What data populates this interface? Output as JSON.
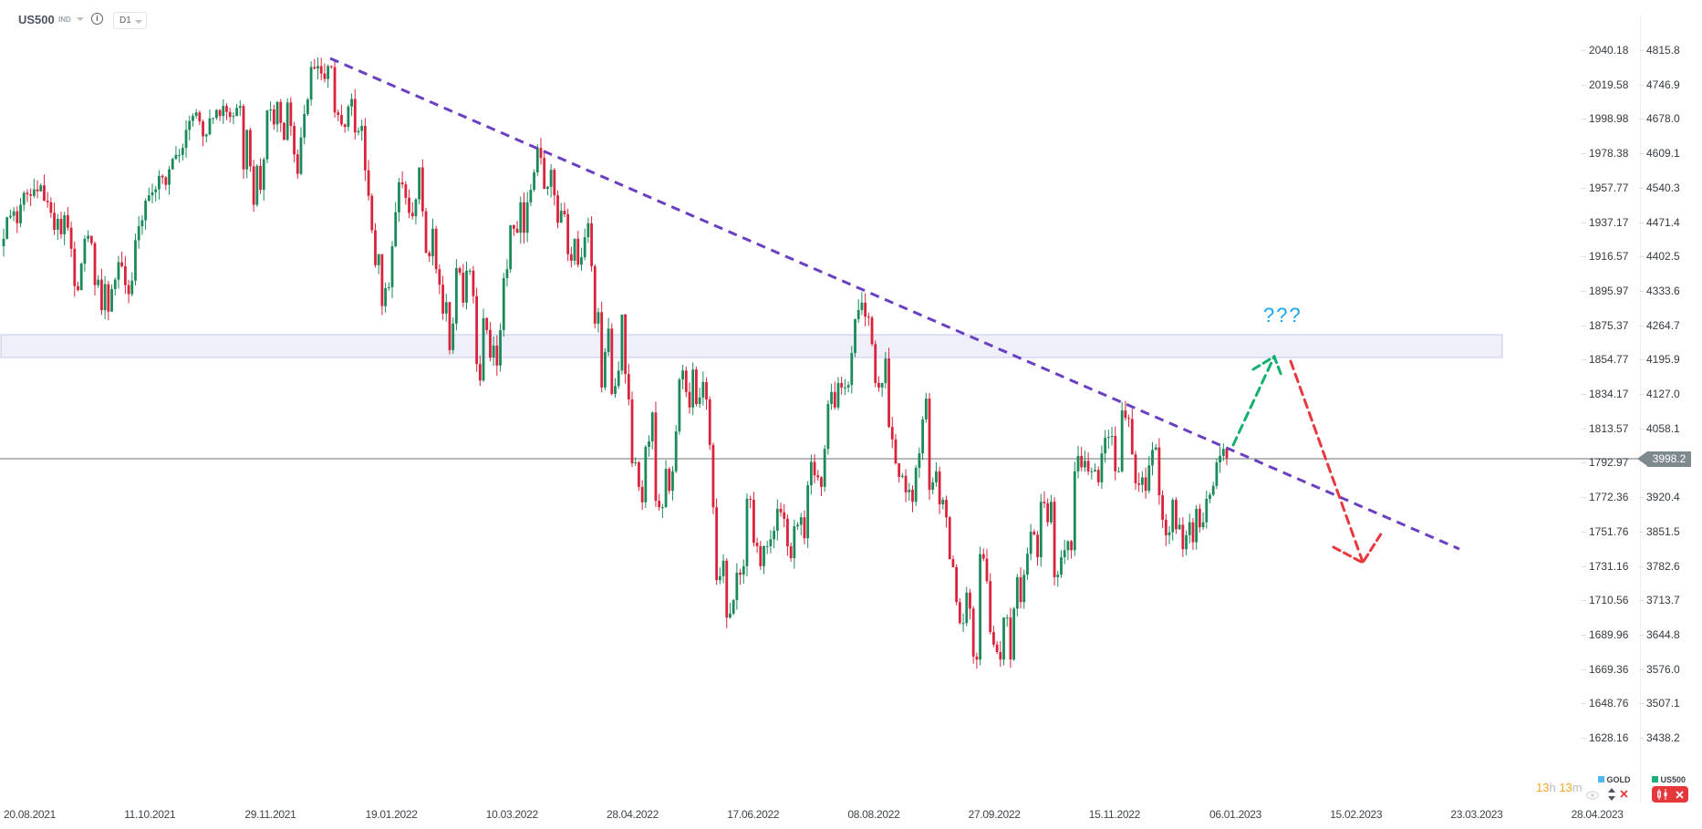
{
  "header": {
    "symbol": "US500",
    "market_type": "IND",
    "info_icon": "info-icon",
    "timeframe": "D1"
  },
  "colors": {
    "up_candle": "#1b8a5a",
    "down_candle": "#d9233a",
    "trendline": "#6a3fc2",
    "zone_fill": "#eeeff9",
    "zone_border": "#c5c8ee",
    "bull_arrow": "#12b06e",
    "bear_arrow": "#e8383d",
    "question_text": "#1ba4f0",
    "price_line": "#8a8f93",
    "price_tag": "#7f8a8f"
  },
  "annotation": {
    "text": "???"
  },
  "axes": {
    "left_ticks": [
      "2040.18",
      "2019.58",
      "1998.98",
      "1978.38",
      "1957.77",
      "1937.17",
      "1916.57",
      "1895.97",
      "1875.37",
      "1854.77",
      "1834.17",
      "1813.57",
      "1792.97",
      "1772.36",
      "1751.76",
      "1731.16",
      "1710.56",
      "1689.96",
      "1669.36",
      "1648.76",
      "1628.16"
    ],
    "right_ticks": [
      "4815.8",
      "4746.9",
      "4678.0",
      "4609.1",
      "4540.3",
      "4471.4",
      "4402.5",
      "4333.6",
      "4264.7",
      "4195.9",
      "4127.0",
      "4058.1",
      "",
      "3920.4",
      "3851.5",
      "3782.6",
      "3713.7",
      "3644.8",
      "3576.0",
      "3507.1",
      "3438.2"
    ],
    "x_ticks": [
      "20.08.2021",
      "11.10.2021",
      "29.11.2021",
      "19.01.2022",
      "10.03.2022",
      "28.04.2022",
      "17.06.2022",
      "08.08.2022",
      "27.09.2022",
      "15.11.2022",
      "06.01.2023",
      "15.02.2023",
      "23.03.2023",
      "28.04.2023"
    ],
    "current_price": "3998.2"
  },
  "footer": {
    "timer_h": "13",
    "timer_h_unit": "h",
    "timer_m": "13",
    "timer_m_unit": "m",
    "legend": [
      {
        "name": "GOLD",
        "color": "#4fb8ee"
      },
      {
        "name": "US500",
        "color": "#1db07a"
      }
    ]
  },
  "chart_data": {
    "type": "candlestick",
    "series": "US500",
    "timeframe": "D1",
    "ylim": [
      3438.2,
      4815.8
    ],
    "current_price": 3998.2,
    "closes": [
      4438,
      4481,
      4484,
      4493,
      4469,
      4506,
      4530,
      4527,
      4524,
      4537,
      4533,
      4545,
      4514,
      4511,
      4490,
      4456,
      4478,
      4447,
      4485,
      4460,
      4418,
      4343,
      4335,
      4388,
      4438,
      4444,
      4429,
      4345,
      4356,
      4295,
      4347,
      4292,
      4337,
      4356,
      4391,
      4383,
      4345,
      4327,
      4354,
      4435,
      4463,
      4475,
      4514,
      4525,
      4531,
      4537,
      4564,
      4561,
      4546,
      4577,
      4598,
      4606,
      4606,
      4620,
      4656,
      4674,
      4684,
      4691,
      4673,
      4643,
      4647,
      4679,
      4680,
      4696,
      4684,
      4704,
      4692,
      4682,
      4684,
      4700,
      4704,
      4577,
      4656,
      4583,
      4506,
      4584,
      4536,
      4597,
      4695,
      4697,
      4667,
      4712,
      4670,
      4636,
      4711,
      4664,
      4607,
      4568,
      4641,
      4688,
      4717,
      4782,
      4779,
      4784,
      4769,
      4758,
      4784,
      4782,
      4691,
      4686,
      4667,
      4662,
      4703,
      4718,
      4651,
      4654,
      4664,
      4575,
      4524,
      4455,
      4385,
      4407,
      4303,
      4339,
      4341,
      4423,
      4491,
      4551,
      4547,
      4520,
      4490,
      4483,
      4517,
      4581,
      4493,
      4410,
      4403,
      4458,
      4377,
      4346,
      4288,
      4311,
      4215,
      4268,
      4379,
      4370,
      4310,
      4374,
      4374,
      4323,
      4187,
      4154,
      4279,
      4255,
      4200,
      4224,
      4184,
      4255,
      4359,
      4377,
      4465,
      4458,
      4450,
      4511,
      4450,
      4511,
      4536,
      4571,
      4620,
      4600,
      4538,
      4542,
      4576,
      4525,
      4470,
      4494,
      4487,
      4407,
      4394,
      4438,
      4386,
      4401,
      4441,
      4469,
      4383,
      4268,
      4291,
      4140,
      4211,
      4258,
      4127,
      4143,
      4174,
      4286,
      4167,
      4116,
      3988,
      3990,
      3941,
      3910,
      4021,
      4032,
      4090,
      3913,
      3900,
      3900,
      3977,
      3933,
      3972,
      4052,
      4156,
      4174,
      4131,
      4100,
      4176,
      4107,
      4120,
      4151,
      4116,
      4025,
      3900,
      3754,
      3762,
      3793,
      3679,
      3687,
      3714,
      3769,
      3765,
      3782,
      3917,
      3915,
      3829,
      3822,
      3782,
      3822,
      3822,
      3836,
      3853,
      3897,
      3890,
      3877,
      3822,
      3798,
      3862,
      3865,
      3880,
      3838,
      3944,
      3991,
      3964,
      3960,
      3941,
      4017,
      4107,
      4131,
      4100,
      4149,
      4140,
      4140,
      4145,
      4209,
      4277,
      4295,
      4310,
      4282,
      4280,
      4227,
      4149,
      4140,
      4149,
      4198,
      4061,
      4036,
      3988,
      3961,
      3963,
      3930,
      3935,
      3911,
      3979,
      4008,
      4076,
      4118,
      3935,
      3950,
      3972,
      3906,
      3915,
      3880,
      3796,
      3780,
      3710,
      3668,
      3668,
      3729,
      3697,
      3601,
      3595,
      3806,
      3797,
      3752,
      3650,
      3625,
      3610,
      3595,
      3679,
      3679,
      3595,
      3697,
      3760,
      3710,
      3765,
      3807,
      3851,
      3845,
      3800,
      3911,
      3908,
      3870,
      3911,
      3760,
      3765,
      3800,
      3814,
      3832,
      3814,
      3972,
      4003,
      3980,
      3993,
      3972,
      3972,
      3975,
      3950,
      4008,
      4039,
      4041,
      4043,
      3972,
      3972,
      4094,
      4079,
      4077,
      4006,
      3948,
      3945,
      3960,
      3933,
      3984,
      4015,
      4020,
      3924,
      3875,
      3844,
      3850,
      3915,
      3856,
      3865,
      3816,
      3844,
      3870,
      3830,
      3897,
      3860,
      3870,
      3917,
      3925,
      3943,
      3990,
      4003,
      4017,
      3998.2
    ]
  }
}
